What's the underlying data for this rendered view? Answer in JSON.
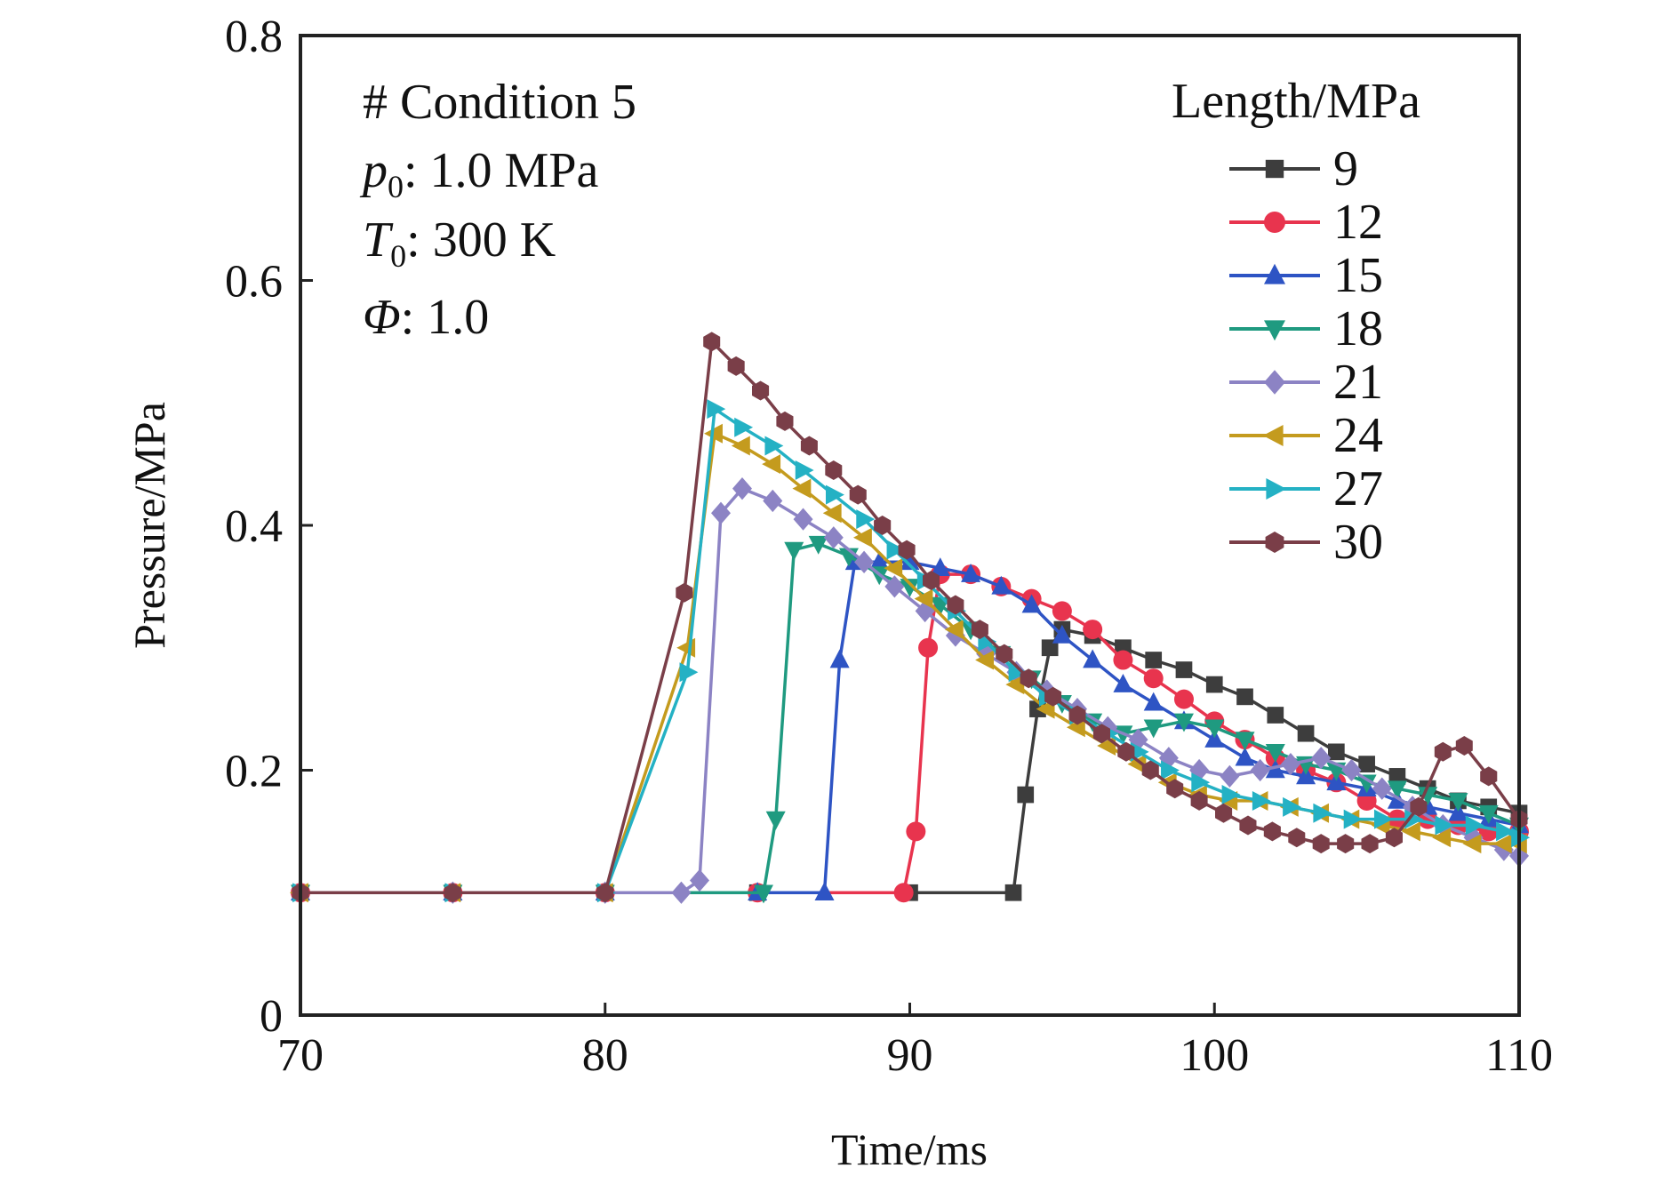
{
  "chart_data": {
    "type": "line",
    "title": "",
    "xlabel": "Time/ms",
    "ylabel": "Pressure/MPa",
    "xlim": [
      70,
      110
    ],
    "ylim": [
      0,
      0.8
    ],
    "xticks": [
      70,
      80,
      90,
      100,
      110
    ],
    "yticks": [
      0,
      0.2,
      0.4,
      0.6,
      0.8
    ],
    "xtick_labels": [
      "70",
      "80",
      "90",
      "100",
      "110"
    ],
    "ytick_labels": [
      "0",
      "0.2",
      "0.4",
      "0.6",
      "0.8"
    ],
    "grid": false,
    "legend_title": "Length/MPa",
    "legend_position": "top-right",
    "annotations": [
      {
        "main": "# Condition 5"
      },
      {
        "symbol": "p",
        "sub": "0",
        "rest": ": 1.0 MPa"
      },
      {
        "symbol": "T",
        "sub": "0",
        "rest": ": 300 K"
      },
      {
        "symbol": "Φ",
        "sub": "",
        "rest": ": 1.0"
      }
    ],
    "series": [
      {
        "name": "9",
        "color": "#3d3d3d",
        "marker": "square",
        "x": [
          70,
          75,
          80,
          85,
          90,
          93.4,
          93.8,
          94.2,
          94.6,
          95,
          96,
          97,
          98,
          99,
          100,
          101,
          102,
          103,
          104,
          105,
          106,
          107,
          108,
          109,
          110
        ],
        "y": [
          0.1,
          0.1,
          0.1,
          0.1,
          0.1,
          0.1,
          0.18,
          0.25,
          0.3,
          0.315,
          0.31,
          0.3,
          0.29,
          0.282,
          0.27,
          0.26,
          0.245,
          0.23,
          0.215,
          0.205,
          0.195,
          0.185,
          0.175,
          0.17,
          0.165
        ]
      },
      {
        "name": "12",
        "color": "#e8344e",
        "marker": "circle",
        "x": [
          70,
          75,
          80,
          85,
          89.8,
          90.2,
          90.6,
          91,
          92,
          93,
          94,
          95,
          96,
          97,
          98,
          99,
          100,
          101,
          102,
          103,
          104,
          105,
          106,
          107,
          108,
          109,
          110
        ],
        "y": [
          0.1,
          0.1,
          0.1,
          0.1,
          0.1,
          0.15,
          0.3,
          0.36,
          0.36,
          0.35,
          0.34,
          0.33,
          0.315,
          0.29,
          0.275,
          0.258,
          0.24,
          0.225,
          0.21,
          0.2,
          0.19,
          0.175,
          0.16,
          0.16,
          0.155,
          0.15,
          0.15
        ]
      },
      {
        "name": "15",
        "color": "#2e54c4",
        "marker": "triangle-up",
        "x": [
          70,
          75,
          80,
          85,
          87.2,
          87.7,
          88.2,
          89,
          90,
          91,
          92,
          93,
          94,
          95,
          96,
          97,
          98,
          99,
          100,
          101,
          102,
          103,
          104,
          105,
          106,
          107,
          108,
          109,
          110
        ],
        "y": [
          0.1,
          0.1,
          0.1,
          0.1,
          0.1,
          0.29,
          0.37,
          0.37,
          0.37,
          0.365,
          0.36,
          0.35,
          0.335,
          0.31,
          0.29,
          0.27,
          0.255,
          0.24,
          0.225,
          0.21,
          0.2,
          0.195,
          0.19,
          0.185,
          0.175,
          0.17,
          0.165,
          0.16,
          0.155
        ]
      },
      {
        "name": "18",
        "color": "#1f9a80",
        "marker": "triangle-down",
        "x": [
          70,
          75,
          80,
          85.2,
          85.6,
          86.2,
          87,
          88,
          89,
          90,
          91,
          92,
          93,
          94,
          95,
          96,
          97,
          98,
          99,
          100,
          101,
          102,
          103,
          104,
          105,
          106,
          107,
          108,
          109,
          110
        ],
        "y": [
          0.1,
          0.1,
          0.1,
          0.1,
          0.16,
          0.38,
          0.385,
          0.375,
          0.36,
          0.35,
          0.335,
          0.315,
          0.295,
          0.275,
          0.255,
          0.24,
          0.23,
          0.235,
          0.24,
          0.235,
          0.225,
          0.215,
          0.205,
          0.2,
          0.19,
          0.185,
          0.18,
          0.175,
          0.165,
          0.155
        ]
      },
      {
        "name": "21",
        "color": "#8c83c4",
        "marker": "diamond",
        "x": [
          70,
          75,
          80,
          82.5,
          83.1,
          83.8,
          84.5,
          85.5,
          86.5,
          87.5,
          88.5,
          89.5,
          90.5,
          91.5,
          92.5,
          93.5,
          94.5,
          95.5,
          96.5,
          97.5,
          98.5,
          99.5,
          100.5,
          101.5,
          102.5,
          103.5,
          104.5,
          105.5,
          106.5,
          107.5,
          108.5,
          109.5,
          110
        ],
        "y": [
          0.1,
          0.1,
          0.1,
          0.1,
          0.11,
          0.41,
          0.43,
          0.42,
          0.405,
          0.39,
          0.37,
          0.35,
          0.33,
          0.31,
          0.295,
          0.28,
          0.265,
          0.25,
          0.235,
          0.225,
          0.21,
          0.2,
          0.195,
          0.2,
          0.205,
          0.21,
          0.2,
          0.185,
          0.17,
          0.155,
          0.145,
          0.135,
          0.13
        ]
      },
      {
        "name": "24",
        "color": "#c49b1e",
        "marker": "triangle-left",
        "x": [
          70,
          75,
          80,
          82.7,
          83.6,
          84.5,
          85.5,
          86.5,
          87.5,
          88.5,
          89.5,
          90.5,
          91.5,
          92.5,
          93.5,
          94.5,
          95.5,
          96.5,
          97.5,
          98.5,
          99.5,
          100.5,
          101.5,
          102.5,
          103.5,
          104.5,
          105.5,
          106.5,
          107.5,
          108.5,
          109.5,
          110
        ],
        "y": [
          0.1,
          0.1,
          0.1,
          0.3,
          0.475,
          0.465,
          0.45,
          0.43,
          0.41,
          0.39,
          0.365,
          0.34,
          0.315,
          0.29,
          0.27,
          0.25,
          0.235,
          0.22,
          0.205,
          0.19,
          0.18,
          0.175,
          0.175,
          0.17,
          0.165,
          0.16,
          0.155,
          0.15,
          0.145,
          0.14,
          0.14,
          0.14
        ]
      },
      {
        "name": "27",
        "color": "#24b1c4",
        "marker": "triangle-right",
        "x": [
          70,
          75,
          80,
          82.7,
          83.6,
          84.5,
          85.5,
          86.5,
          87.5,
          88.5,
          89.5,
          90.5,
          91.5,
          92.5,
          93.5,
          94.5,
          95.5,
          96.5,
          97.5,
          98.5,
          99.5,
          100.5,
          101.5,
          102.5,
          103.5,
          104.5,
          105.5,
          106.5,
          107.5,
          108.5,
          109.5,
          110
        ],
        "y": [
          0.1,
          0.1,
          0.1,
          0.28,
          0.495,
          0.48,
          0.465,
          0.445,
          0.425,
          0.405,
          0.38,
          0.355,
          0.33,
          0.305,
          0.28,
          0.26,
          0.245,
          0.23,
          0.215,
          0.2,
          0.19,
          0.18,
          0.175,
          0.17,
          0.165,
          0.16,
          0.16,
          0.16,
          0.155,
          0.155,
          0.15,
          0.145
        ]
      },
      {
        "name": "30",
        "color": "#7a3e48",
        "marker": "hexagon",
        "x": [
          70,
          75,
          80,
          82.6,
          83.5,
          84.3,
          85.1,
          85.9,
          86.7,
          87.5,
          88.3,
          89.1,
          89.9,
          90.7,
          91.5,
          92.3,
          93.1,
          93.9,
          94.7,
          95.5,
          96.3,
          97.1,
          97.9,
          98.7,
          99.5,
          100.3,
          101.1,
          101.9,
          102.7,
          103.5,
          104.3,
          105.1,
          105.9,
          106.7,
          107.5,
          108.2,
          109,
          110
        ],
        "y": [
          0.1,
          0.1,
          0.1,
          0.345,
          0.55,
          0.53,
          0.51,
          0.485,
          0.465,
          0.445,
          0.425,
          0.4,
          0.38,
          0.355,
          0.335,
          0.315,
          0.295,
          0.275,
          0.26,
          0.245,
          0.23,
          0.215,
          0.2,
          0.185,
          0.175,
          0.165,
          0.155,
          0.15,
          0.145,
          0.14,
          0.14,
          0.14,
          0.145,
          0.17,
          0.215,
          0.22,
          0.195,
          0.16
        ]
      }
    ]
  }
}
